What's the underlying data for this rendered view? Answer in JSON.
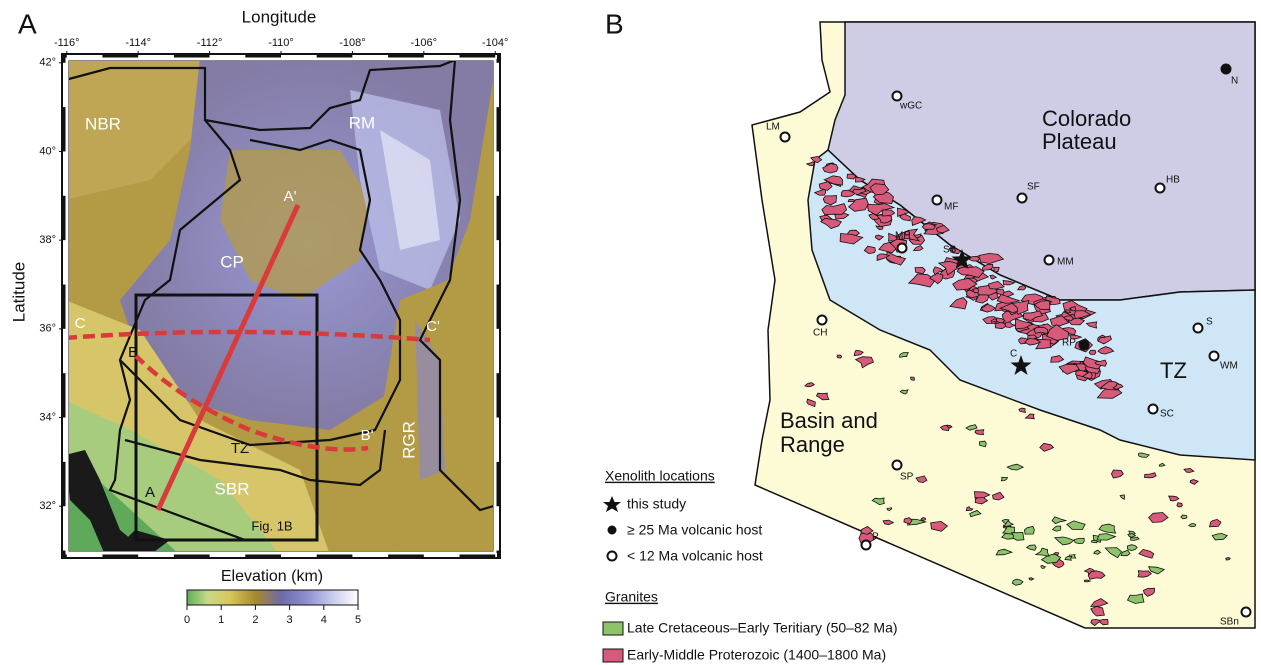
{
  "panel_a": {
    "label": "A",
    "x_axis_title": "Longitude",
    "y_axis_title": "Latitude",
    "xlim": [
      -116.05,
      -103.95
    ],
    "ylim": [
      30.9,
      42.13
    ],
    "xticks": [
      {
        "value": -116,
        "label": "-116°"
      },
      {
        "value": -114,
        "label": "-114°"
      },
      {
        "value": -112,
        "label": "-112°"
      },
      {
        "value": -110,
        "label": "-110°"
      },
      {
        "value": -108,
        "label": "-108°"
      },
      {
        "value": -106,
        "label": "-106°"
      },
      {
        "value": -104,
        "label": "-104°"
      }
    ],
    "yticks": [
      {
        "value": 42,
        "label": "42°"
      },
      {
        "value": 40,
        "label": "40°"
      },
      {
        "value": 38,
        "label": "38°"
      },
      {
        "value": 36,
        "label": "36°"
      },
      {
        "value": 34,
        "label": "34°"
      },
      {
        "value": 32,
        "label": "32°"
      }
    ],
    "regions": [
      "NBR",
      "RM",
      "CP",
      "TZ",
      "SBR",
      "RGR"
    ],
    "profile_labels": [
      "A",
      "A'",
      "B",
      "B'",
      "C",
      "C'"
    ],
    "box_label": "Fig. 1B",
    "colorbar": {
      "title": "Elevation (km)",
      "lim": [
        0,
        5
      ],
      "ticks": [
        0,
        1,
        2,
        3,
        4,
        5
      ]
    }
  },
  "panel_b": {
    "label": "B",
    "provinces": {
      "colorado_plateau": [
        "Colorado",
        "Plateau"
      ],
      "transition_zone": "TZ",
      "basin_and_range": [
        "Basin and",
        "Range"
      ]
    },
    "sites": [
      "LM",
      "wGC",
      "N",
      "MF",
      "SF",
      "HB",
      "MH",
      "SB",
      "MM",
      "CH",
      "S",
      "RP",
      "C",
      "WM",
      "SC",
      "SP",
      "P",
      "SBn"
    ],
    "legend": {
      "xenolith_title": "Xenolith locations",
      "this_study": "this study",
      "old_host": "≥ 25 Ma volcanic host",
      "young_host": "< 12 Ma volcanic host",
      "granites_title": "Granites",
      "late_cretaceous": "Late Cretaceous–Early Teritiary (50–82 Ma)",
      "proterozoic": "Early-Middle Proterozoic (1400–1800 Ma)"
    }
  }
}
